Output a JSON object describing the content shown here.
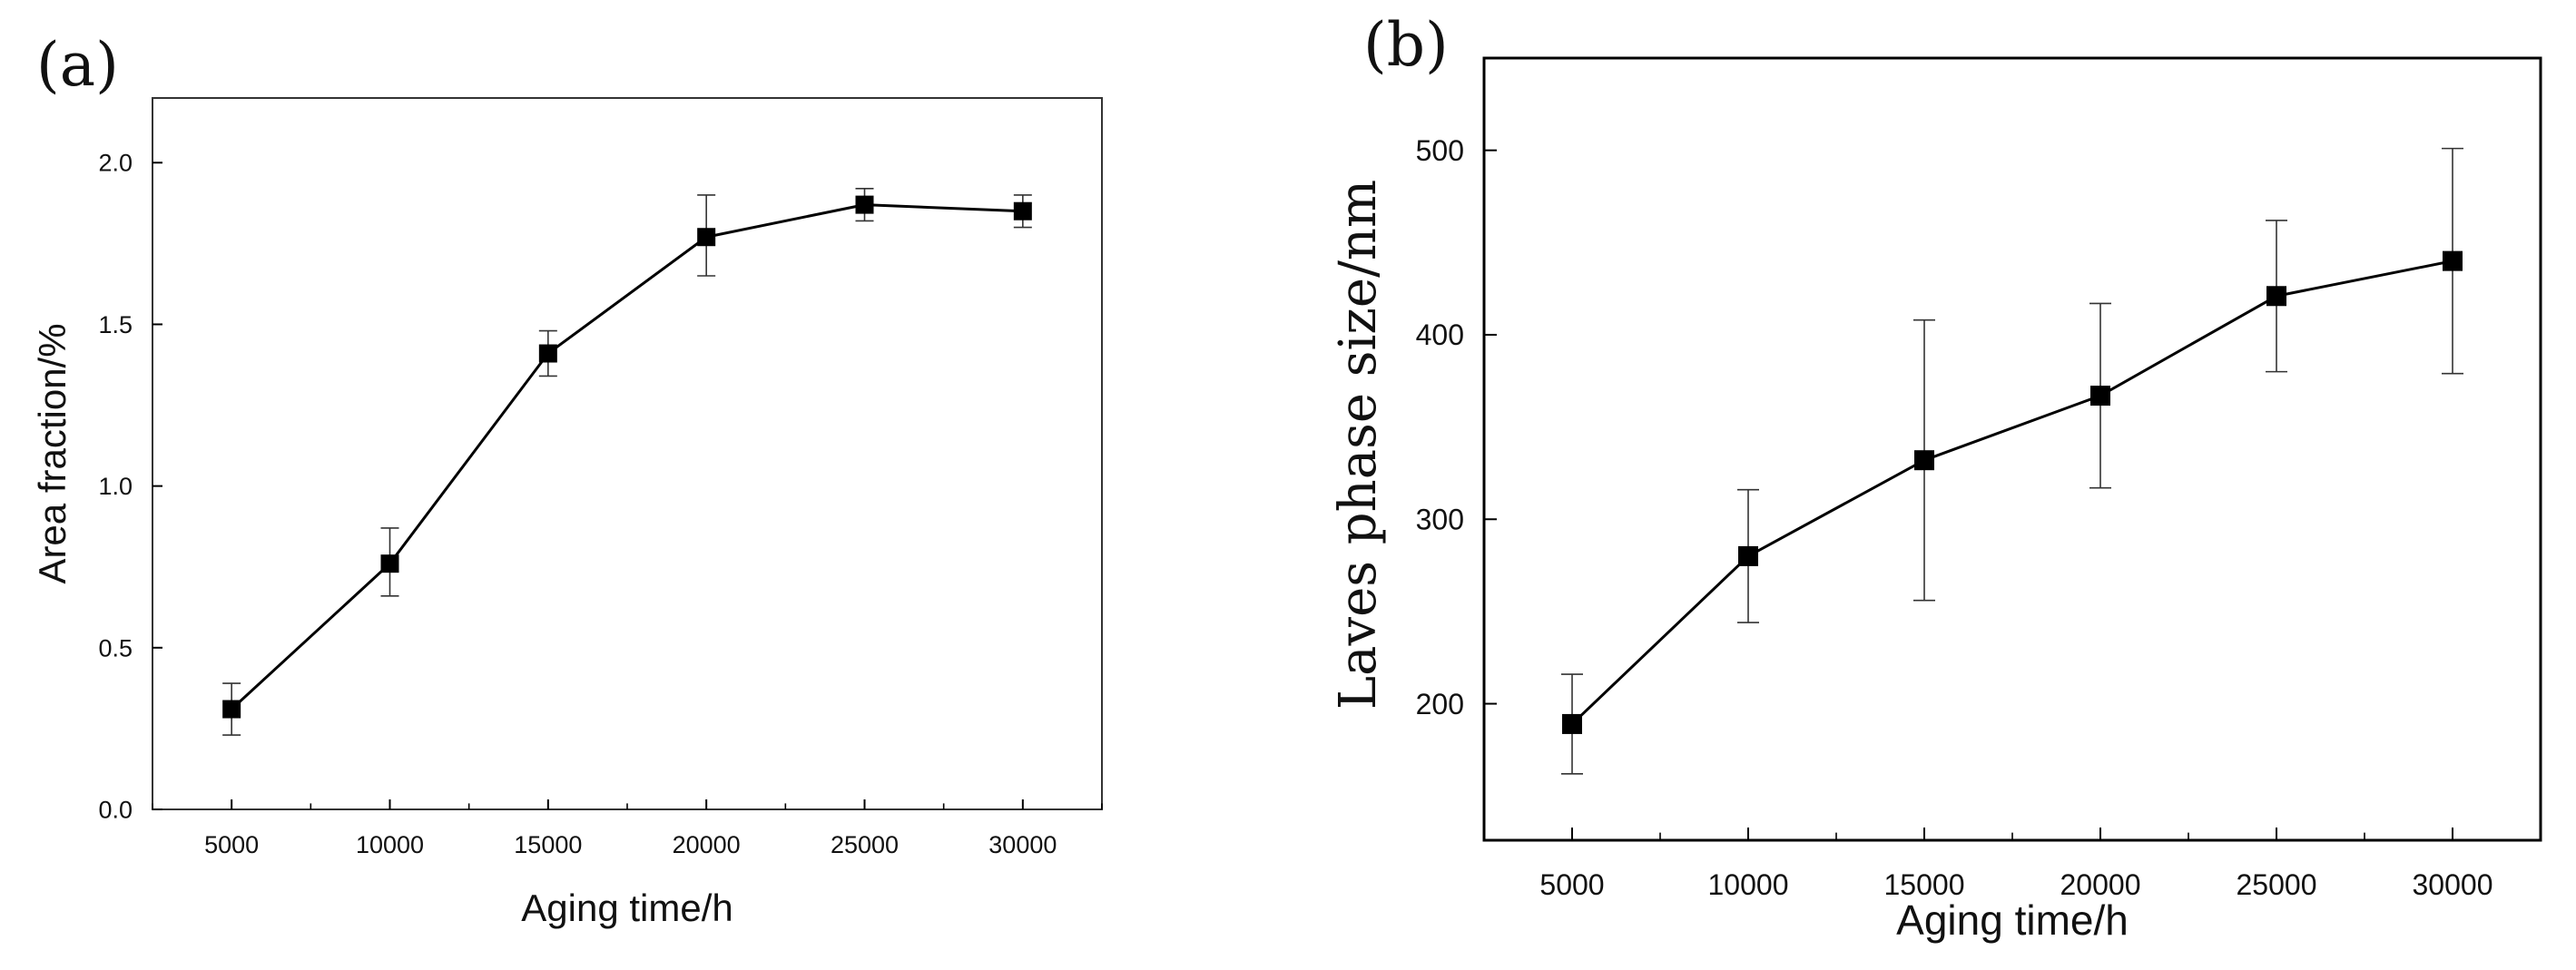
{
  "chart_data": [
    {
      "id": "a",
      "type": "line",
      "panel_label": "(a)",
      "title": "",
      "xlabel": "Aging time/h",
      "ylabel": "Area fraction/%",
      "x": [
        5000,
        10000,
        15000,
        20000,
        25000,
        30000
      ],
      "x_ticks": [
        5000,
        10000,
        15000,
        20000,
        25000,
        30000
      ],
      "x_tick_labels": [
        "5000",
        "10000",
        "15000",
        "20000",
        "25000",
        "30000"
      ],
      "xlim": [
        2500,
        32500
      ],
      "y_ticks": [
        0.0,
        0.5,
        1.0,
        1.5,
        2.0
      ],
      "y_tick_labels": [
        "0.0",
        "0.5",
        "1.0",
        "1.5",
        "2.0"
      ],
      "ylim": [
        0.0,
        2.2
      ],
      "grid": false,
      "legend": "none",
      "series": [
        {
          "name": "Area fraction",
          "values": [
            0.31,
            0.76,
            1.41,
            1.77,
            1.87,
            1.85
          ],
          "error_low": [
            0.23,
            0.66,
            1.34,
            1.65,
            1.82,
            1.8
          ],
          "error_high": [
            0.39,
            0.87,
            1.48,
            1.9,
            1.92,
            1.9
          ],
          "marker": "square",
          "color": "#000000"
        }
      ]
    },
    {
      "id": "b",
      "type": "line",
      "panel_label": "(b)",
      "title": "",
      "xlabel": "Aging time/h",
      "ylabel": "Laves phase size/nm",
      "x": [
        5000,
        10000,
        15000,
        20000,
        25000,
        30000
      ],
      "x_ticks": [
        5000,
        10000,
        15000,
        20000,
        25000,
        30000
      ],
      "x_tick_labels": [
        "5000",
        "10000",
        "15000",
        "20000",
        "25000",
        "30000"
      ],
      "xlim": [
        2500,
        32500
      ],
      "y_ticks": [
        200,
        300,
        400,
        500
      ],
      "y_tick_labels": [
        "200",
        "300",
        "400",
        "500"
      ],
      "ylim": [
        126,
        550
      ],
      "grid": false,
      "legend": "none",
      "series": [
        {
          "name": "Laves phase size",
          "values": [
            189,
            280,
            332,
            367,
            421,
            440
          ],
          "error_low": [
            162,
            244,
            256,
            317,
            380,
            379
          ],
          "error_high": [
            216,
            316,
            408,
            417,
            462,
            501
          ],
          "marker": "square",
          "color": "#000000"
        }
      ]
    }
  ]
}
